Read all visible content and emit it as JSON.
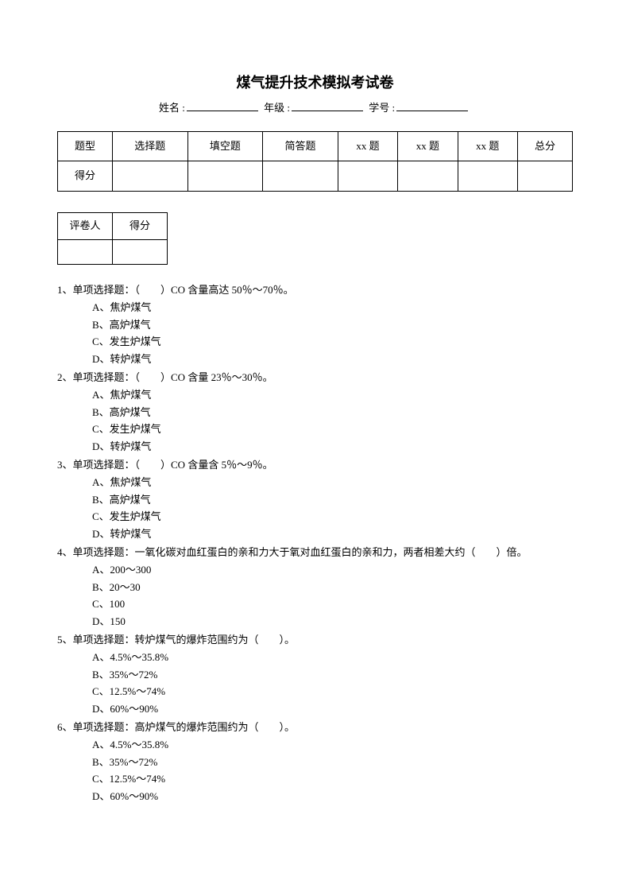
{
  "title": "煤气提升技术模拟考试卷",
  "info": {
    "name_label": "姓名 :",
    "grade_label": "年级 :",
    "id_label": "学号 :"
  },
  "score_table": {
    "headers": [
      "题型",
      "选择题",
      "填空题",
      "简答题",
      "xx 题",
      "xx 题",
      "xx 题",
      "总分"
    ],
    "row_label": "得分"
  },
  "grader_table": {
    "headers": [
      "评卷人",
      "得分"
    ]
  },
  "questions": [
    {
      "num": "1、",
      "stem": "单项选择题：（　　）CO 含量高达 50％～70％。",
      "options": [
        "A、焦炉煤气",
        "B、高炉煤气",
        "C、发生炉煤气",
        "D、转炉煤气"
      ]
    },
    {
      "num": "2、",
      "stem": "单项选择题：（　　）CO 含量 23％～30％。",
      "options": [
        "A、焦炉煤气",
        "B、高炉煤气",
        "C、发生炉煤气",
        "D、转炉煤气"
      ]
    },
    {
      "num": "3、",
      "stem": "单项选择题：（　　）CO 含量含 5％～9％。",
      "options": [
        "A、焦炉煤气",
        "B、高炉煤气",
        "C、发生炉煤气",
        "D、转炉煤气"
      ]
    },
    {
      "num": "4、",
      "stem": "单项选择题：一氧化碳对血红蛋白的亲和力大于氧对血红蛋白的亲和力，两者相差大约（　　）倍。",
      "options": [
        "A、200～300",
        "B、20～30",
        "C、100",
        "D、150"
      ]
    },
    {
      "num": "5、",
      "stem": "单项选择题：转炉煤气的爆炸范围约为（　　）。",
      "options": [
        "A、4.5%～35.8%",
        "B、35%～72%",
        "C、12.5%～74%",
        "D、60%～90%"
      ]
    },
    {
      "num": "6、",
      "stem": "单项选择题：高炉煤气的爆炸范围约为（　　）。",
      "options": [
        "A、4.5%～35.8%",
        "B、35%～72%",
        "C、12.5%～74%",
        "D、60%～90%"
      ]
    }
  ]
}
